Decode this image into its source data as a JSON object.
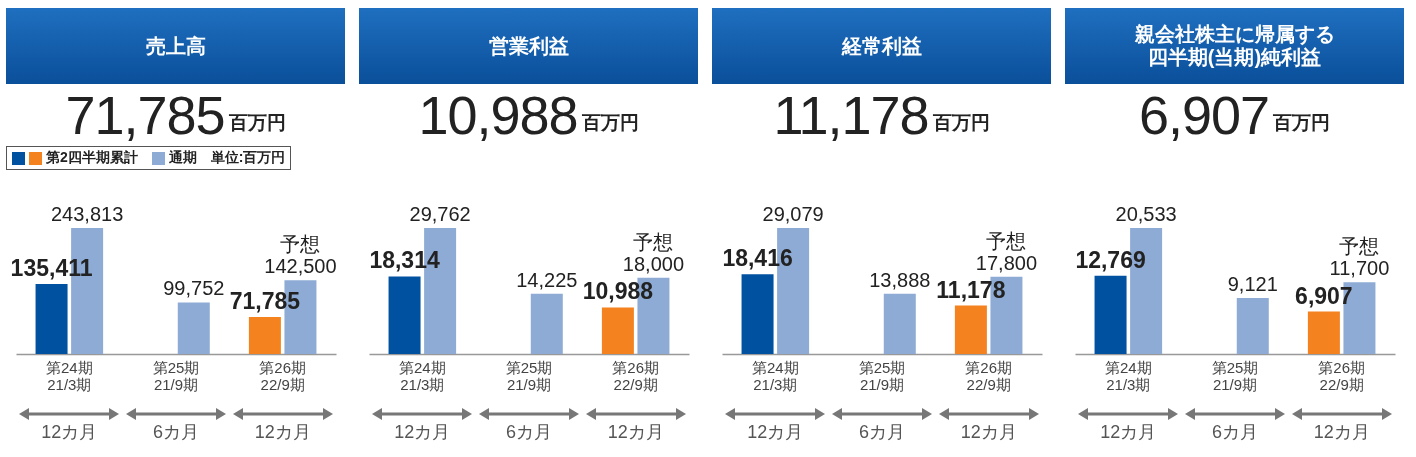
{
  "chart_data": [
    {
      "type": "bar",
      "title": "売上高",
      "subtitle": "71,785百万円",
      "categories": [
        "第24期\n21/3期",
        "第25期\n21/9期",
        "第26期\n22/9期"
      ],
      "series": [
        {
          "name": "第2四半期累計",
          "colors": [
            "#00519f",
            null,
            "#f3821f"
          ],
          "values": [
            135411,
            null,
            71785
          ],
          "value_labels": [
            "135,411",
            null,
            "71,785"
          ]
        },
        {
          "name": "通期",
          "color": "#8eabd5",
          "values": [
            243813,
            99752,
            142500
          ],
          "value_labels": [
            "243,813",
            "99,752",
            "142,500"
          ]
        }
      ],
      "legend": "top left",
      "legend_title": "単位:百万円",
      "annotations": [
        {
          "text": "予想",
          "x": "第26期\n22/9期",
          "y": 142500
        },
        "12カ月",
        "6カ月",
        "12カ月"
      ]
    },
    {
      "type": "bar",
      "title": "営業利益",
      "subtitle": "10,988百万円",
      "categories": [
        "第24期\n21/3期",
        "第25期\n21/9期",
        "第26期\n22/9期"
      ],
      "series": [
        {
          "colors": [
            "#00519f",
            null,
            "#f3821f"
          ],
          "values": [
            18314,
            null,
            10988
          ],
          "value_labels": [
            "18,314",
            null,
            "10,988"
          ]
        },
        {
          "color": "#8eabd5",
          "values": [
            29762,
            14225,
            18000
          ],
          "value_labels": [
            "29,762",
            "14,225",
            "18,000"
          ]
        }
      ],
      "annotations": [
        {
          "text": "予想",
          "x": "第26期\n22/9期",
          "y": 18000
        },
        "12カ月",
        "6カ月",
        "12カ月"
      ]
    },
    {
      "type": "bar",
      "title": "経常利益",
      "subtitle": "11,178百万円",
      "categories": [
        "第24期\n21/3期",
        "第25期\n21/9期",
        "第26期\n22/9期"
      ],
      "series": [
        {
          "colors": [
            "#00519f",
            null,
            "#f3821f"
          ],
          "values": [
            18416,
            null,
            11178
          ],
          "value_labels": [
            "18,416",
            null,
            "11,178"
          ]
        },
        {
          "color": "#8eabd5",
          "values": [
            29079,
            13888,
            17800
          ],
          "value_labels": [
            "29,079",
            "13,888",
            "17,800"
          ]
        }
      ],
      "annotations": [
        {
          "text": "予想",
          "x": "第26期\n22/9期",
          "y": 17800
        },
        "12カ月",
        "6カ月",
        "12カ月"
      ]
    },
    {
      "type": "bar",
      "title": "親会社株主に帰属する四半期(当期)純利益",
      "subtitle": "6,907百万円",
      "categories": [
        "第24期\n21/3期",
        "第25期\n21/9期",
        "第26期\n22/9期"
      ],
      "series": [
        {
          "colors": [
            "#00519f",
            null,
            "#f3821f"
          ],
          "values": [
            12769,
            null,
            6907
          ],
          "value_labels": [
            "12,769",
            null,
            "6,907"
          ]
        },
        {
          "color": "#8eabd5",
          "values": [
            20533,
            9121,
            11700
          ],
          "value_labels": [
            "20,533",
            "9,121",
            "11,700"
          ]
        }
      ],
      "annotations": [
        {
          "text": "予想",
          "x": "第26期\n22/9期",
          "y": 11700
        },
        "12カ月",
        "6カ月",
        "12カ月"
      ]
    }
  ]
}
